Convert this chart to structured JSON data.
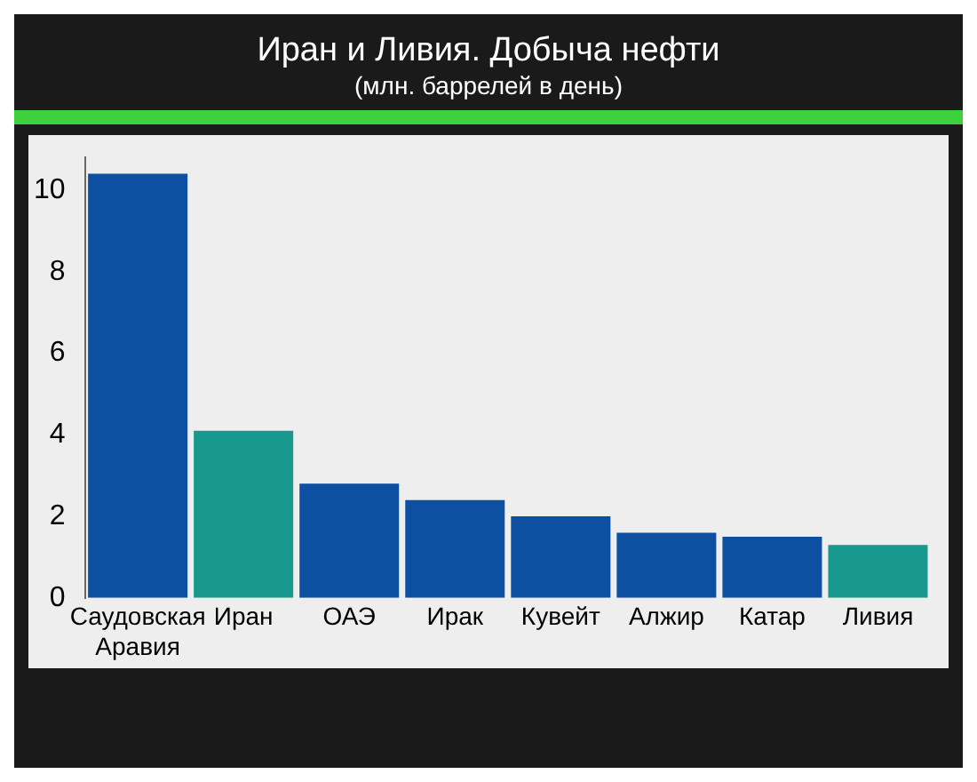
{
  "chart_data": {
    "type": "bar",
    "title": "Иран и Ливия. Добыча нефти",
    "subtitle": "(млн. баррелей в день)",
    "categories": [
      "Саудовская Аравия",
      "Иран",
      "ОАЭ",
      "Ирак",
      "Кувейт",
      "Алжир",
      "Катар",
      "Ливия"
    ],
    "values": [
      10.4,
      4.1,
      2.8,
      2.4,
      2.0,
      1.6,
      1.5,
      1.3
    ],
    "colors": [
      "#0d4fa0",
      "#17998f",
      "#0d4fa0",
      "#0d4fa0",
      "#0d4fa0",
      "#0d4fa0",
      "#0d4fa0",
      "#17998f"
    ],
    "ylim": [
      0,
      10.8
    ],
    "yticks": [
      0,
      2,
      4,
      6,
      8,
      10
    ],
    "grid": false,
    "legend": false
  }
}
